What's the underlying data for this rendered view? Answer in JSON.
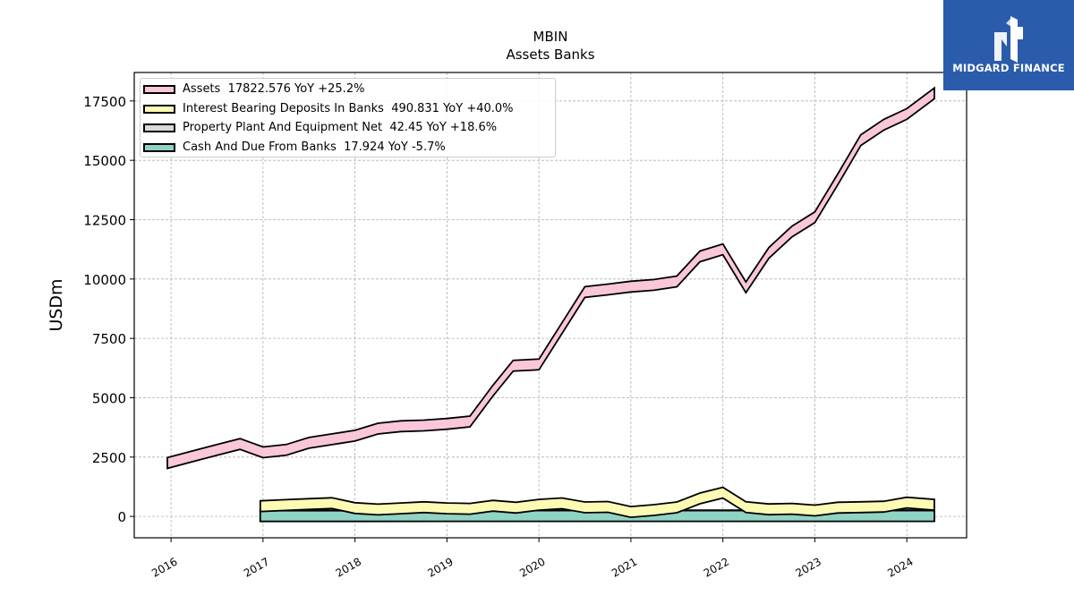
{
  "header": {
    "title": "MBIN",
    "subtitle": "Assets Banks"
  },
  "logo": {
    "text": "MIDGARD FINANCE",
    "background": "#2b5cab",
    "icon": "mf-monogram-icon"
  },
  "chart_data": {
    "type": "area",
    "title": "MBIN",
    "subtitle": "Assets Banks",
    "xlabel": "",
    "ylabel": "USDm",
    "xlim": [
      2015.6,
      2024.65
    ],
    "ylim": [
      -900,
      18700
    ],
    "x_ticks": [
      2016,
      2017,
      2018,
      2019,
      2020,
      2021,
      2022,
      2023,
      2024
    ],
    "y_ticks": [
      0,
      2500,
      5000,
      7500,
      10000,
      12500,
      15000,
      17500
    ],
    "grid": true,
    "legend_position": "top-left",
    "series": [
      {
        "name": "Assets",
        "legend": "Assets  17822.576 YoY +25.2%",
        "color": "#f9c6da",
        "x": [
          2015.96,
          2016.25,
          2016.5,
          2016.75,
          2017.0,
          2017.25,
          2017.5,
          2017.75,
          2018.0,
          2018.25,
          2018.5,
          2018.75,
          2019.0,
          2019.25,
          2019.5,
          2019.72,
          2020.0,
          2020.5,
          2020.75,
          2021.0,
          2021.25,
          2021.5,
          2021.75,
          2022.0,
          2022.25,
          2022.5,
          2022.75,
          2023.0,
          2023.25,
          2023.5,
          2023.75,
          2024.0,
          2024.3
        ],
        "values": [
          2250,
          2550,
          2800,
          3050,
          2700,
          2800,
          3100,
          3250,
          3400,
          3700,
          3800,
          3830,
          3900,
          4000,
          5300,
          6350,
          6400,
          9450,
          9560,
          9680,
          9750,
          9900,
          10950,
          11250,
          9650,
          11100,
          12000,
          12600,
          14200,
          15850,
          16500,
          16950,
          17822.576
        ]
      },
      {
        "name": "Interest Bearing Deposits In Banks",
        "legend": "Interest Bearing Deposits In Banks  490.831 YoY +40.0%",
        "color": "#fdfab4",
        "x": [
          2016.97,
          2017.25,
          2017.5,
          2017.75,
          2018.0,
          2018.25,
          2018.5,
          2018.75,
          2019.0,
          2019.25,
          2019.5,
          2019.75,
          2020.0,
          2020.25,
          2020.5,
          2020.75,
          2021.0,
          2021.25,
          2021.5,
          2021.75,
          2022.0,
          2022.25,
          2022.5,
          2022.75,
          2023.0,
          2023.25,
          2023.5,
          2023.75,
          2024.0,
          2024.3
        ],
        "values": [
          430,
          480,
          520,
          560,
          350,
          290,
          340,
          390,
          340,
          320,
          450,
          370,
          490,
          550,
          380,
          400,
          190,
          270,
          380,
          760,
          1000,
          390,
          300,
          320,
          250,
          370,
          390,
          410,
          580,
          490.831
        ]
      },
      {
        "name": "Property Plant And Equipment Net",
        "legend": "Property Plant And Equipment Net  42.45 YoY +18.6%",
        "color": "#d9d9d9",
        "x": [
          2016.97,
          2018.0,
          2019.0,
          2020.0,
          2021.0,
          2022.0,
          2023.0,
          2024.3
        ],
        "values": [
          30,
          33,
          35,
          36,
          36,
          38,
          40,
          42.45
        ]
      },
      {
        "name": "Cash And Due From Banks",
        "legend": "Cash And Due From Banks  17.924 YoY -5.7%",
        "color": "#8fd3c4",
        "x": [
          2016.97,
          2018.0,
          2019.0,
          2020.0,
          2021.0,
          2022.0,
          2023.0,
          2024.3
        ],
        "values": [
          16,
          17,
          18,
          19,
          18,
          19,
          19,
          17.924
        ]
      }
    ]
  }
}
